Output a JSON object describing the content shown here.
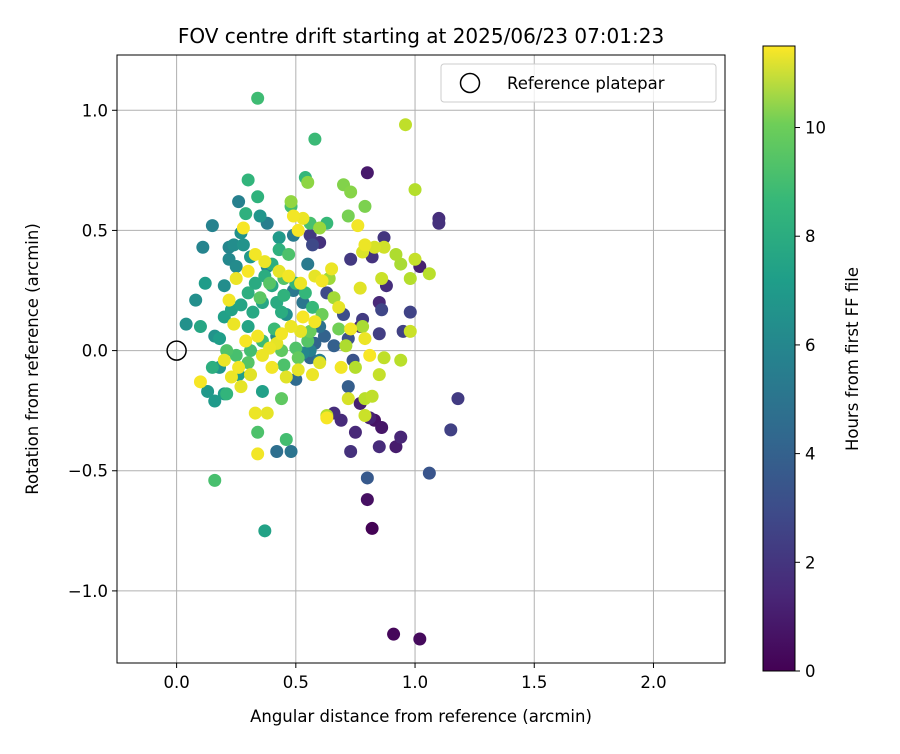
{
  "chart_data": {
    "type": "scatter",
    "title": "FOV centre drift starting at 2025/06/23 07:01:23",
    "xlabel": "Angular distance from reference (arcmin)",
    "ylabel": "Rotation from reference (arcmin)",
    "xlim": [
      -0.25,
      2.3
    ],
    "ylim": [
      -1.3,
      1.23
    ],
    "xticks": [
      0.0,
      0.5,
      1.0,
      1.5,
      2.0
    ],
    "xtick_labels": [
      "0.0",
      "0.5",
      "1.0",
      "1.5",
      "2.0"
    ],
    "yticks": [
      -1.0,
      -0.5,
      0.0,
      0.5,
      1.0
    ],
    "ytick_labels": [
      "−1.0",
      "−0.5",
      "0.0",
      "0.5",
      "1.0"
    ],
    "grid": true,
    "legend": {
      "placement": "top-right",
      "entries": [
        "Reference platepar"
      ]
    },
    "reference_point": {
      "x": 0.0,
      "y": 0.0,
      "marker": "hollow-circle"
    },
    "colorbar": {
      "label": "Hours from first FF file",
      "colormap": "viridis",
      "range": [
        0,
        11.5
      ],
      "ticks": [
        0,
        2,
        4,
        6,
        8,
        10
      ],
      "tick_labels": [
        "0",
        "2",
        "4",
        "6",
        "8",
        "10"
      ]
    },
    "points": [
      {
        "x": 0.82,
        "y": -0.74,
        "h": 0.05
      },
      {
        "x": 0.91,
        "y": -1.18,
        "h": 0.2
      },
      {
        "x": 1.02,
        "y": -1.2,
        "h": 0.3
      },
      {
        "x": 0.8,
        "y": -0.62,
        "h": 0.5
      },
      {
        "x": 0.83,
        "y": -0.29,
        "h": 0.6
      },
      {
        "x": 0.86,
        "y": -0.32,
        "h": 0.7
      },
      {
        "x": 0.92,
        "y": -0.4,
        "h": 0.9
      },
      {
        "x": 0.77,
        "y": -0.22,
        "h": 1.0
      },
      {
        "x": 0.81,
        "y": -0.28,
        "h": 1.1
      },
      {
        "x": 0.94,
        "y": -0.36,
        "h": 1.2
      },
      {
        "x": 0.75,
        "y": -0.34,
        "h": 1.3
      },
      {
        "x": 0.69,
        "y": -0.29,
        "h": 1.4
      },
      {
        "x": 0.66,
        "y": -0.26,
        "h": 1.5
      },
      {
        "x": 0.73,
        "y": -0.42,
        "h": 1.6
      },
      {
        "x": 0.8,
        "y": 0.74,
        "h": 0.8
      },
      {
        "x": 1.1,
        "y": 0.55,
        "h": 1.5
      },
      {
        "x": 1.1,
        "y": 0.53,
        "h": 1.6
      },
      {
        "x": 1.02,
        "y": 0.35,
        "h": 1.0
      },
      {
        "x": 1.18,
        "y": -0.2,
        "h": 2.0
      },
      {
        "x": 1.15,
        "y": -0.33,
        "h": 2.2
      },
      {
        "x": 0.85,
        "y": -0.4,
        "h": 1.4
      },
      {
        "x": 0.77,
        "y": 0.1,
        "h": 1.2
      },
      {
        "x": 0.85,
        "y": 0.2,
        "h": 1.3
      },
      {
        "x": 0.88,
        "y": 0.27,
        "h": 1.5
      },
      {
        "x": 0.82,
        "y": 0.39,
        "h": 1.7
      },
      {
        "x": 0.87,
        "y": 0.47,
        "h": 1.8
      },
      {
        "x": 0.73,
        "y": 0.38,
        "h": 1.9
      },
      {
        "x": 0.78,
        "y": 0.13,
        "h": 2.0
      },
      {
        "x": 0.85,
        "y": 0.07,
        "h": 2.1
      },
      {
        "x": 0.95,
        "y": 0.08,
        "h": 2.2
      },
      {
        "x": 0.98,
        "y": 0.16,
        "h": 2.3
      },
      {
        "x": 0.86,
        "y": 0.17,
        "h": 2.4
      },
      {
        "x": 0.6,
        "y": 0.45,
        "h": 1.6
      },
      {
        "x": 0.56,
        "y": 0.48,
        "h": 1.9
      },
      {
        "x": 0.57,
        "y": 0.44,
        "h": 2.5
      },
      {
        "x": 0.63,
        "y": 0.24,
        "h": 2.6
      },
      {
        "x": 0.7,
        "y": 0.15,
        "h": 2.7
      },
      {
        "x": 0.72,
        "y": 0.05,
        "h": 2.8
      },
      {
        "x": 0.74,
        "y": -0.04,
        "h": 2.9
      },
      {
        "x": 1.06,
        "y": -0.51,
        "h": 3.0
      },
      {
        "x": 0.8,
        "y": -0.53,
        "h": 3.2
      },
      {
        "x": 0.72,
        "y": -0.15,
        "h": 3.4
      },
      {
        "x": 0.66,
        "y": 0.02,
        "h": 3.5
      },
      {
        "x": 0.62,
        "y": 0.06,
        "h": 3.6
      },
      {
        "x": 0.58,
        "y": 0.03,
        "h": 3.7
      },
      {
        "x": 0.56,
        "y": -0.03,
        "h": 3.8
      },
      {
        "x": 0.5,
        "y": -0.12,
        "h": 4.0
      },
      {
        "x": 0.42,
        "y": -0.42,
        "h": 4.2
      },
      {
        "x": 0.48,
        "y": -0.42,
        "h": 4.4
      },
      {
        "x": 0.6,
        "y": 0.1,
        "h": 4.3
      },
      {
        "x": 0.53,
        "y": 0.2,
        "h": 4.5
      },
      {
        "x": 0.49,
        "y": 0.25,
        "h": 4.6
      },
      {
        "x": 0.55,
        "y": 0.36,
        "h": 4.7
      },
      {
        "x": 0.49,
        "y": 0.48,
        "h": 4.8
      },
      {
        "x": 0.38,
        "y": 0.53,
        "h": 4.9
      },
      {
        "x": 0.26,
        "y": 0.62,
        "h": 5.0
      },
      {
        "x": 0.15,
        "y": 0.52,
        "h": 5.1
      },
      {
        "x": 0.11,
        "y": 0.43,
        "h": 5.2
      },
      {
        "x": 0.22,
        "y": 0.43,
        "h": 5.3
      },
      {
        "x": 0.22,
        "y": 0.38,
        "h": 5.4
      },
      {
        "x": 0.25,
        "y": 0.35,
        "h": 5.5
      },
      {
        "x": 0.2,
        "y": 0.27,
        "h": 5.6
      },
      {
        "x": 0.08,
        "y": 0.21,
        "h": 5.7
      },
      {
        "x": 0.04,
        "y": 0.11,
        "h": 5.8
      },
      {
        "x": 0.16,
        "y": 0.06,
        "h": 5.9
      },
      {
        "x": 0.18,
        "y": -0.07,
        "h": 6.0
      },
      {
        "x": 0.13,
        "y": -0.17,
        "h": 6.1
      },
      {
        "x": 0.16,
        "y": -0.21,
        "h": 6.2
      },
      {
        "x": 0.2,
        "y": -0.18,
        "h": 6.3
      },
      {
        "x": 0.26,
        "y": -0.1,
        "h": 6.4
      },
      {
        "x": 0.36,
        "y": -0.17,
        "h": 6.5
      },
      {
        "x": 0.37,
        "y": -0.75,
        "h": 6.6
      },
      {
        "x": 0.3,
        "y": 0.1,
        "h": 6.7
      },
      {
        "x": 0.36,
        "y": 0.2,
        "h": 6.8
      },
      {
        "x": 0.4,
        "y": 0.27,
        "h": 6.9
      },
      {
        "x": 0.42,
        "y": 0.2,
        "h": 7.0
      },
      {
        "x": 0.44,
        "y": 0.16,
        "h": 7.1
      },
      {
        "x": 0.3,
        "y": 0.24,
        "h": 7.2
      },
      {
        "x": 0.29,
        "y": 0.57,
        "h": 7.3
      },
      {
        "x": 0.34,
        "y": 0.64,
        "h": 7.4
      },
      {
        "x": 0.3,
        "y": 0.71,
        "h": 7.5
      },
      {
        "x": 0.54,
        "y": 0.72,
        "h": 7.6
      },
      {
        "x": 0.58,
        "y": 0.88,
        "h": 7.8
      },
      {
        "x": 0.34,
        "y": 1.05,
        "h": 7.9
      },
      {
        "x": 0.63,
        "y": 0.53,
        "h": 7.7
      },
      {
        "x": 0.48,
        "y": 0.6,
        "h": 8.0
      },
      {
        "x": 0.56,
        "y": 0.53,
        "h": 8.1
      },
      {
        "x": 0.47,
        "y": 0.4,
        "h": 8.2
      },
      {
        "x": 0.45,
        "y": 0.3,
        "h": 8.3
      },
      {
        "x": 0.39,
        "y": 0.28,
        "h": 8.4
      },
      {
        "x": 0.35,
        "y": 0.22,
        "h": 8.5
      },
      {
        "x": 0.34,
        "y": -0.34,
        "h": 8.2
      },
      {
        "x": 0.46,
        "y": -0.37,
        "h": 8.0
      },
      {
        "x": 0.16,
        "y": -0.54,
        "h": 8.1
      },
      {
        "x": 0.21,
        "y": 0.0,
        "h": 8.3
      },
      {
        "x": 0.3,
        "y": -0.05,
        "h": 8.4
      },
      {
        "x": 0.44,
        "y": -0.2,
        "h": 8.6
      },
      {
        "x": 0.44,
        "y": 0.0,
        "h": 8.6
      },
      {
        "x": 0.51,
        "y": -0.03,
        "h": 8.7
      },
      {
        "x": 0.56,
        "y": 0.08,
        "h": 8.8
      },
      {
        "x": 0.61,
        "y": 0.15,
        "h": 8.9
      },
      {
        "x": 0.68,
        "y": 0.09,
        "h": 9.0
      },
      {
        "x": 0.72,
        "y": 0.56,
        "h": 9.1
      },
      {
        "x": 0.79,
        "y": 0.6,
        "h": 9.2
      },
      {
        "x": 0.7,
        "y": 0.69,
        "h": 9.3
      },
      {
        "x": 0.73,
        "y": 0.66,
        "h": 9.4
      },
      {
        "x": 0.55,
        "y": 0.7,
        "h": 9.5
      },
      {
        "x": 0.48,
        "y": 0.62,
        "h": 9.6
      },
      {
        "x": 0.6,
        "y": 0.51,
        "h": 9.7
      },
      {
        "x": 0.64,
        "y": 0.3,
        "h": 9.8
      },
      {
        "x": 0.66,
        "y": 0.22,
        "h": 9.9
      },
      {
        "x": 0.78,
        "y": 0.1,
        "h": 10.0
      },
      {
        "x": 0.71,
        "y": 0.02,
        "h": 10.1
      },
      {
        "x": 0.75,
        "y": -0.07,
        "h": 10.2
      },
      {
        "x": 0.79,
        "y": -0.2,
        "h": 10.3
      },
      {
        "x": 0.82,
        "y": -0.19,
        "h": 10.4
      },
      {
        "x": 0.85,
        "y": -0.1,
        "h": 10.5
      },
      {
        "x": 0.87,
        "y": -0.03,
        "h": 10.4
      },
      {
        "x": 0.94,
        "y": -0.04,
        "h": 10.3
      },
      {
        "x": 0.98,
        "y": 0.08,
        "h": 10.6
      },
      {
        "x": 0.96,
        "y": 0.94,
        "h": 10.4
      },
      {
        "x": 1.0,
        "y": 0.67,
        "h": 10.2
      },
      {
        "x": 0.94,
        "y": 0.36,
        "h": 10.0
      },
      {
        "x": 0.92,
        "y": 0.4,
        "h": 10.1
      },
      {
        "x": 0.98,
        "y": 0.3,
        "h": 10.2
      },
      {
        "x": 1.06,
        "y": 0.32,
        "h": 10.3
      },
      {
        "x": 1.0,
        "y": 0.38,
        "h": 10.5
      },
      {
        "x": 0.87,
        "y": 0.43,
        "h": 10.7
      },
      {
        "x": 0.83,
        "y": 0.43,
        "h": 10.8
      },
      {
        "x": 0.78,
        "y": 0.41,
        "h": 10.9
      },
      {
        "x": 0.77,
        "y": 0.26,
        "h": 11.0
      },
      {
        "x": 0.86,
        "y": 0.3,
        "h": 10.6
      },
      {
        "x": 0.63,
        "y": -0.27,
        "h": 10.2
      },
      {
        "x": 0.79,
        "y": -0.27,
        "h": 10.6
      },
      {
        "x": 0.72,
        "y": -0.2,
        "h": 10.8
      },
      {
        "x": 0.6,
        "y": -0.05,
        "h": 11.0
      },
      {
        "x": 0.57,
        "y": -0.1,
        "h": 11.2
      },
      {
        "x": 0.51,
        "y": -0.08,
        "h": 11.1
      },
      {
        "x": 0.46,
        "y": -0.11,
        "h": 11.0
      },
      {
        "x": 0.4,
        "y": -0.07,
        "h": 11.3
      },
      {
        "x": 0.36,
        "y": -0.02,
        "h": 11.2
      },
      {
        "x": 0.33,
        "y": -0.26,
        "h": 11.2
      },
      {
        "x": 0.34,
        "y": -0.43,
        "h": 11.3
      },
      {
        "x": 0.38,
        "y": -0.26,
        "h": 11.1
      },
      {
        "x": 0.1,
        "y": -0.13,
        "h": 11.4
      },
      {
        "x": 0.2,
        "y": -0.04,
        "h": 11.2
      },
      {
        "x": 0.26,
        "y": -0.07,
        "h": 11.3
      },
      {
        "x": 0.27,
        "y": -0.15,
        "h": 11.1
      },
      {
        "x": 0.31,
        "y": -0.1,
        "h": 11.0
      },
      {
        "x": 0.23,
        "y": -0.11,
        "h": 11.2
      },
      {
        "x": 0.29,
        "y": 0.04,
        "h": 11.4
      },
      {
        "x": 0.34,
        "y": 0.06,
        "h": 11.3
      },
      {
        "x": 0.39,
        "y": 0.01,
        "h": 11.2
      },
      {
        "x": 0.42,
        "y": 0.03,
        "h": 11.1
      },
      {
        "x": 0.44,
        "y": 0.07,
        "h": 11.3
      },
      {
        "x": 0.48,
        "y": 0.1,
        "h": 11.2
      },
      {
        "x": 0.53,
        "y": 0.14,
        "h": 11.4
      },
      {
        "x": 0.58,
        "y": 0.12,
        "h": 11.3
      },
      {
        "x": 0.52,
        "y": 0.08,
        "h": 11.1
      },
      {
        "x": 0.24,
        "y": 0.11,
        "h": 11.2
      },
      {
        "x": 0.22,
        "y": 0.21,
        "h": 11.3
      },
      {
        "x": 0.25,
        "y": 0.3,
        "h": 11.2
      },
      {
        "x": 0.3,
        "y": 0.33,
        "h": 11.4
      },
      {
        "x": 0.33,
        "y": 0.4,
        "h": 11.3
      },
      {
        "x": 0.37,
        "y": 0.37,
        "h": 11.2
      },
      {
        "x": 0.43,
        "y": 0.33,
        "h": 11.1
      },
      {
        "x": 0.47,
        "y": 0.31,
        "h": 11.3
      },
      {
        "x": 0.52,
        "y": 0.28,
        "h": 11.2
      },
      {
        "x": 0.58,
        "y": 0.31,
        "h": 11.1
      },
      {
        "x": 0.61,
        "y": 0.29,
        "h": 11.3
      },
      {
        "x": 0.65,
        "y": 0.34,
        "h": 11.2
      },
      {
        "x": 0.49,
        "y": 0.56,
        "h": 11.3
      },
      {
        "x": 0.51,
        "y": 0.5,
        "h": 11.4
      },
      {
        "x": 0.53,
        "y": 0.55,
        "h": 11.2
      },
      {
        "x": 0.28,
        "y": 0.51,
        "h": 11.4
      },
      {
        "x": 0.76,
        "y": 0.52,
        "h": 11.3
      },
      {
        "x": 0.79,
        "y": 0.44,
        "h": 11.2
      },
      {
        "x": 0.68,
        "y": 0.18,
        "h": 11.1
      },
      {
        "x": 0.73,
        "y": 0.09,
        "h": 11.3
      },
      {
        "x": 0.79,
        "y": 0.05,
        "h": 11.2
      },
      {
        "x": 0.81,
        "y": -0.02,
        "h": 11.4
      },
      {
        "x": 0.69,
        "y": -0.07,
        "h": 11.3
      },
      {
        "x": 0.63,
        "y": -0.28,
        "h": 11.4
      },
      {
        "x": 0.18,
        "y": 0.05,
        "h": 6.4
      },
      {
        "x": 0.2,
        "y": 0.14,
        "h": 6.5
      },
      {
        "x": 0.23,
        "y": 0.17,
        "h": 6.6
      },
      {
        "x": 0.27,
        "y": 0.19,
        "h": 6.7
      },
      {
        "x": 0.32,
        "y": 0.16,
        "h": 6.9
      },
      {
        "x": 0.33,
        "y": 0.28,
        "h": 7.0
      },
      {
        "x": 0.37,
        "y": 0.31,
        "h": 7.1
      },
      {
        "x": 0.4,
        "y": 0.36,
        "h": 7.2
      },
      {
        "x": 0.43,
        "y": 0.42,
        "h": 7.3
      },
      {
        "x": 0.45,
        "y": 0.23,
        "h": 7.4
      },
      {
        "x": 0.5,
        "y": 0.28,
        "h": 7.5
      },
      {
        "x": 0.54,
        "y": 0.24,
        "h": 7.6
      },
      {
        "x": 0.57,
        "y": 0.18,
        "h": 7.7
      },
      {
        "x": 0.41,
        "y": 0.09,
        "h": 7.8
      },
      {
        "x": 0.36,
        "y": 0.04,
        "h": 7.9
      },
      {
        "x": 0.31,
        "y": 0.0,
        "h": 8.0
      },
      {
        "x": 0.25,
        "y": -0.02,
        "h": 8.1
      },
      {
        "x": 0.45,
        "y": -0.06,
        "h": 8.2
      },
      {
        "x": 0.5,
        "y": 0.01,
        "h": 8.3
      },
      {
        "x": 0.55,
        "y": 0.04,
        "h": 8.4
      },
      {
        "x": 0.24,
        "y": 0.44,
        "h": 5.6
      },
      {
        "x": 0.27,
        "y": 0.49,
        "h": 5.8
      },
      {
        "x": 0.35,
        "y": 0.56,
        "h": 6.0
      },
      {
        "x": 0.43,
        "y": 0.47,
        "h": 6.2
      },
      {
        "x": 0.46,
        "y": 0.15,
        "h": 5.7
      },
      {
        "x": 0.42,
        "y": 0.06,
        "h": 5.5
      },
      {
        "x": 0.53,
        "y": -0.01,
        "h": 5.3
      },
      {
        "x": 0.56,
        "y": 0.0,
        "h": 5.0
      },
      {
        "x": 0.6,
        "y": -0.04,
        "h": 4.8
      },
      {
        "x": 0.12,
        "y": 0.28,
        "h": 6.3
      },
      {
        "x": 0.1,
        "y": 0.1,
        "h": 6.8
      },
      {
        "x": 0.15,
        "y": -0.07,
        "h": 7.2
      },
      {
        "x": 0.21,
        "y": -0.18,
        "h": 7.5
      },
      {
        "x": 0.28,
        "y": 0.44,
        "h": 5.9
      },
      {
        "x": 0.31,
        "y": 0.39,
        "h": 6.1
      },
      {
        "x": 0.38,
        "y": 0.35,
        "h": 5.4
      }
    ]
  }
}
